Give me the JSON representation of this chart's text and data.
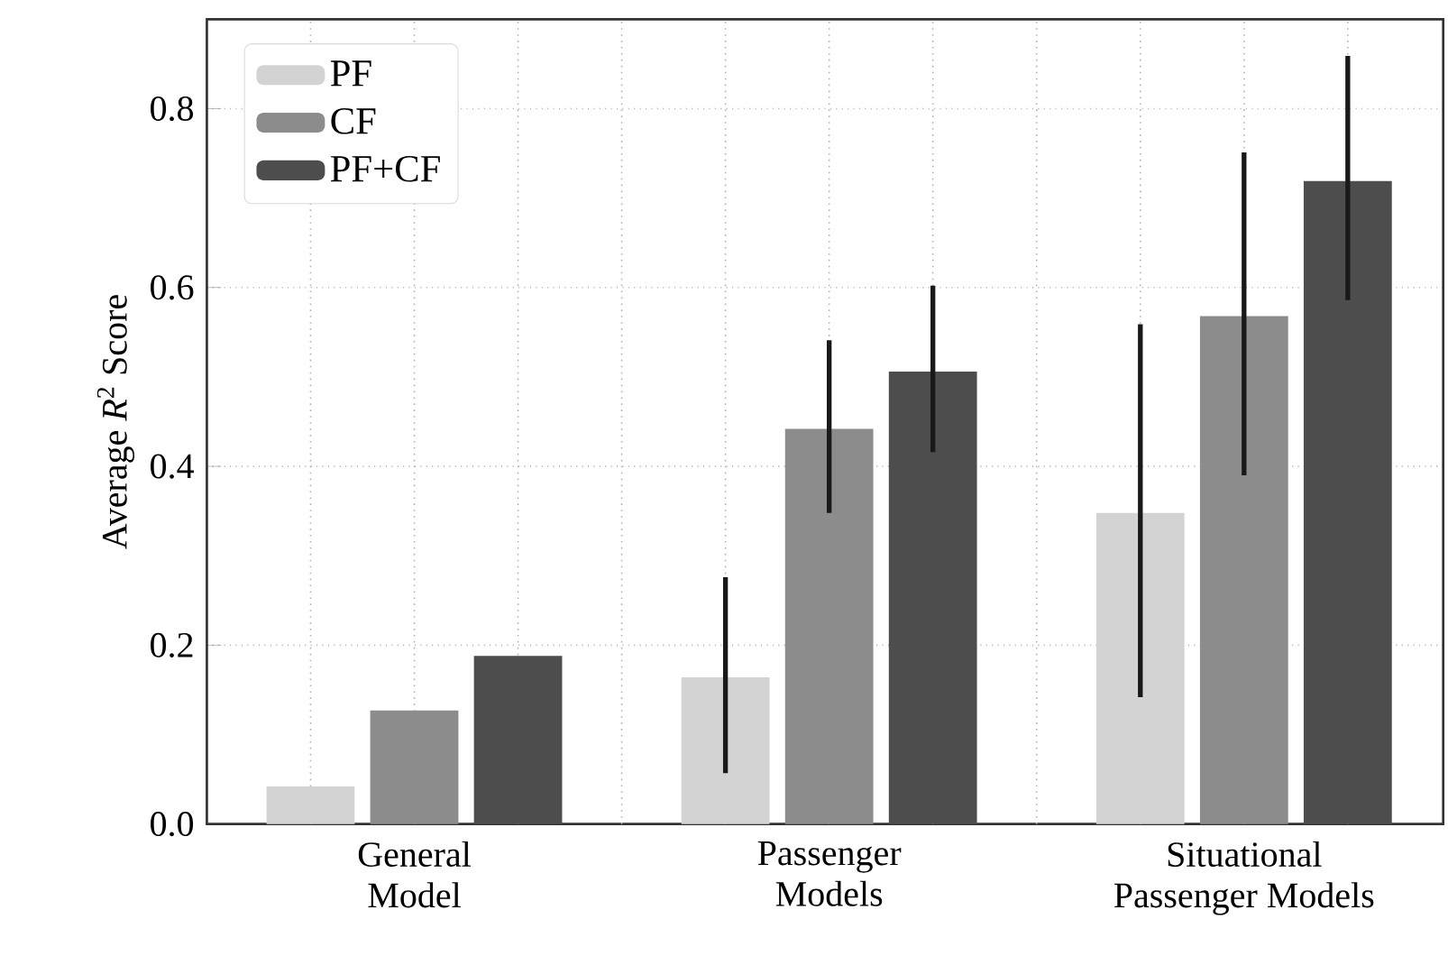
{
  "chart_data": {
    "type": "bar",
    "ylabel": "Average *R*$^{2}$ Score",
    "categories": [
      "General Model",
      "Passenger Models",
      "Situational Passenger Models"
    ],
    "series": [
      {
        "name": "PF",
        "color": "#d3d3d3",
        "values": [
          0.042,
          0.164,
          0.348
        ],
        "errors": [
          null,
          [
            0.057,
            0.276
          ],
          [
            0.142,
            0.559
          ]
        ]
      },
      {
        "name": "CF",
        "color": "#8c8c8c",
        "values": [
          0.127,
          0.442,
          0.568
        ],
        "errors": [
          null,
          [
            0.348,
            0.541
          ],
          [
            0.39,
            0.751
          ]
        ]
      },
      {
        "name": "PF+CF",
        "color": "#4d4d4d",
        "values": [
          0.188,
          0.506,
          0.719
        ],
        "errors": [
          null,
          [
            0.416,
            0.602
          ],
          [
            0.586,
            0.859
          ]
        ]
      }
    ],
    "ylim": [
      0,
      0.9
    ],
    "yticks": [
      {
        "value": 0,
        "label": "0.0"
      },
      0.2,
      0.4,
      0.6,
      0.8
    ],
    "grid": true,
    "legend": "top left"
  }
}
